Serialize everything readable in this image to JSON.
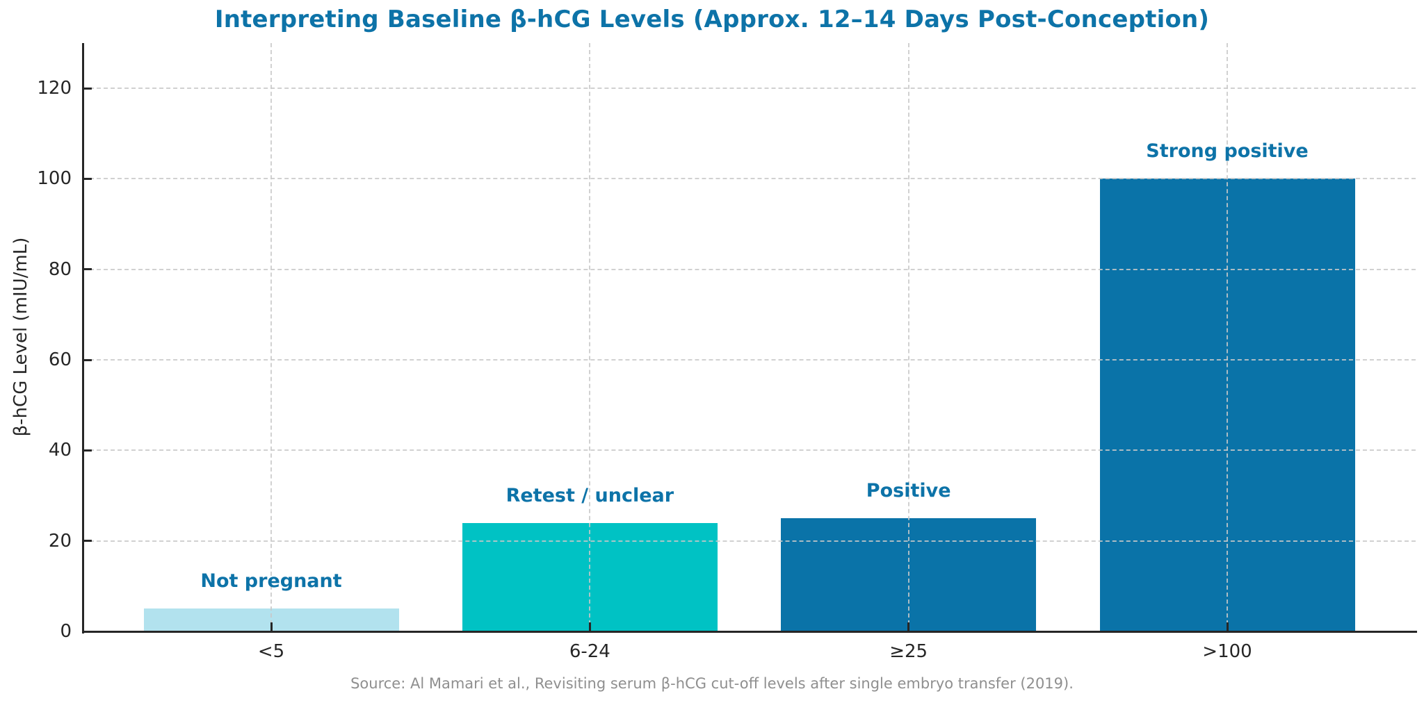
{
  "chart_data": {
    "type": "bar",
    "title": "Interpreting Baseline β-hCG Levels (Approx. 12–14 Days Post-Conception)",
    "ylabel": "β-hCG Level (mIU/mL)",
    "xlabel": "",
    "categories": [
      "<5",
      "6-24",
      "≥25",
      ">100"
    ],
    "values": [
      5,
      24,
      25,
      100
    ],
    "bar_labels": [
      "Not pregnant",
      "Retest / unclear",
      "Positive",
      "Strong positive"
    ],
    "bar_colors": [
      "#b2e2ee",
      "#00c2c4",
      "#0a73a8",
      "#0a73a8"
    ],
    "yticks": [
      0,
      20,
      40,
      60,
      80,
      100,
      120
    ],
    "ylim": [
      0,
      130
    ],
    "grid": {
      "style": "dashed",
      "axes": "both",
      "above_bars": true
    },
    "legend_position": "none",
    "colors": {
      "title": "#0d73a8",
      "bar_label": "#0d73a8",
      "axis": "#262626",
      "tick_label": "#262626",
      "grid": "#c9c9c9",
      "source": "#8f8f8f"
    },
    "source_note": "Source: Al Mamari et al., Revisiting serum β-hCG cut-off levels after single embryo transfer (2019)."
  }
}
